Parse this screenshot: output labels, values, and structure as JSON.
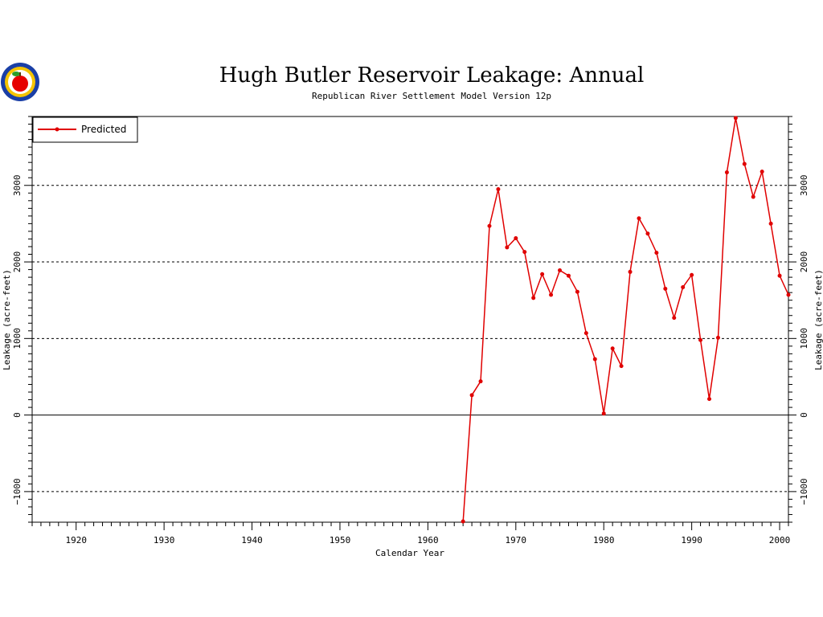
{
  "chart_data": {
    "type": "line",
    "title": "Hugh Butler Reservoir Leakage: Annual",
    "subtitle": "Republican River Settlement Model Version 12p",
    "xlabel": "Calendar Year",
    "ylabel": "Leakage (acre-feet)",
    "ylabel_right": "Leakage (acre-feet)",
    "xlim": [
      1915,
      2001
    ],
    "ylim": [
      -1400,
      3900
    ],
    "x_ticks": [
      1920,
      1930,
      1940,
      1950,
      1960,
      1970,
      1980,
      1990,
      2000
    ],
    "y_ticks": [
      -1000,
      0,
      1000,
      2000,
      3000
    ],
    "grid": "horizontal dashed at y ticks",
    "legend_position": "top-left",
    "series": [
      {
        "name": "Predicted",
        "color": "#e00000",
        "x": [
          1964,
          1965,
          1966,
          1967,
          1968,
          1969,
          1970,
          1971,
          1972,
          1973,
          1974,
          1975,
          1976,
          1977,
          1978,
          1979,
          1980,
          1981,
          1982,
          1983,
          1984,
          1985,
          1986,
          1987,
          1988,
          1989,
          1990,
          1991,
          1992,
          1993,
          1994,
          1995,
          1996,
          1997,
          1998,
          1999,
          2000,
          2001
        ],
        "values": [
          -1390,
          260,
          440,
          2470,
          2950,
          2190,
          2310,
          2130,
          1530,
          1840,
          1570,
          1890,
          1820,
          1610,
          1070,
          730,
          20,
          870,
          640,
          1870,
          2570,
          2370,
          2120,
          1650,
          1270,
          1670,
          1830,
          980,
          210,
          1010,
          3170,
          3880,
          3280,
          2850,
          3180,
          2500,
          1820,
          1570
        ]
      }
    ]
  },
  "logo": {
    "icon": "apple-seal-icon",
    "colors": [
      "#1a3fa6",
      "#f5c400",
      "#e60000",
      "#2a9d2a"
    ]
  }
}
